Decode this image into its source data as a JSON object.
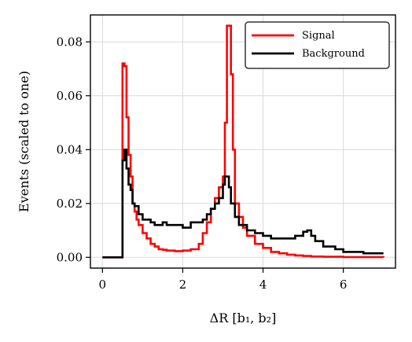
{
  "chart_data": {
    "type": "line",
    "title": "",
    "xlabel": "ΔR [b₁, b₂]",
    "ylabel": "Events (scaled to one)",
    "xlim": [
      -0.3,
      7.3
    ],
    "ylim": [
      -0.004,
      0.09
    ],
    "x_ticks": [
      0,
      2,
      4,
      6
    ],
    "x_tick_labels": [
      "0",
      "2",
      "4",
      "6"
    ],
    "y_ticks": [
      0.0,
      0.02,
      0.04,
      0.06,
      0.08
    ],
    "y_tick_labels": [
      "0.00",
      "0.02",
      "0.04",
      "0.06",
      "0.08"
    ],
    "grid": true,
    "legend_position": "top-right",
    "series": [
      {
        "name": "Signal",
        "color": "#ff0000",
        "style": "step",
        "x": [
          0.0,
          0.45,
          0.5,
          0.55,
          0.6,
          0.65,
          0.7,
          0.75,
          0.8,
          0.85,
          0.9,
          1.0,
          1.1,
          1.2,
          1.3,
          1.4,
          1.5,
          1.6,
          1.8,
          2.0,
          2.2,
          2.4,
          2.5,
          2.6,
          2.7,
          2.8,
          2.9,
          3.0,
          3.05,
          3.1,
          3.15,
          3.2,
          3.25,
          3.3,
          3.4,
          3.5,
          3.6,
          3.8,
          4.0,
          4.2,
          4.4,
          4.6,
          4.8,
          5.0,
          5.2,
          5.5,
          6.0,
          6.5,
          7.0
        ],
        "values": [
          0.0,
          0.0,
          0.072,
          0.071,
          0.052,
          0.038,
          0.03,
          0.02,
          0.017,
          0.014,
          0.012,
          0.009,
          0.007,
          0.005,
          0.004,
          0.003,
          0.0028,
          0.0025,
          0.0023,
          0.0025,
          0.003,
          0.005,
          0.009,
          0.013,
          0.018,
          0.022,
          0.026,
          0.03,
          0.05,
          0.086,
          0.086,
          0.068,
          0.04,
          0.02,
          0.015,
          0.011,
          0.008,
          0.005,
          0.0035,
          0.002,
          0.0015,
          0.001,
          0.0007,
          0.0005,
          0.0003,
          0.0002,
          0.0001,
          0.0001,
          0.0
        ]
      },
      {
        "name": "Background",
        "color": "#000000",
        "style": "step",
        "x": [
          0.0,
          0.45,
          0.5,
          0.55,
          0.6,
          0.65,
          0.7,
          0.75,
          0.8,
          0.9,
          1.0,
          1.1,
          1.2,
          1.3,
          1.4,
          1.5,
          1.6,
          1.8,
          2.0,
          2.2,
          2.4,
          2.5,
          2.6,
          2.7,
          2.8,
          2.9,
          3.0,
          3.05,
          3.1,
          3.15,
          3.2,
          3.3,
          3.4,
          3.6,
          3.8,
          4.0,
          4.2,
          4.4,
          4.6,
          4.8,
          5.0,
          5.1,
          5.2,
          5.3,
          5.5,
          5.8,
          6.0,
          6.5,
          7.0
        ],
        "values": [
          0.0,
          0.0,
          0.036,
          0.04,
          0.033,
          0.027,
          0.025,
          0.02,
          0.019,
          0.016,
          0.014,
          0.014,
          0.013,
          0.012,
          0.012,
          0.013,
          0.012,
          0.012,
          0.011,
          0.013,
          0.013,
          0.014,
          0.016,
          0.018,
          0.02,
          0.022,
          0.027,
          0.03,
          0.03,
          0.026,
          0.02,
          0.015,
          0.012,
          0.01,
          0.009,
          0.008,
          0.007,
          0.007,
          0.007,
          0.008,
          0.0095,
          0.01,
          0.008,
          0.006,
          0.004,
          0.003,
          0.002,
          0.0015,
          0.0015
        ]
      }
    ]
  }
}
